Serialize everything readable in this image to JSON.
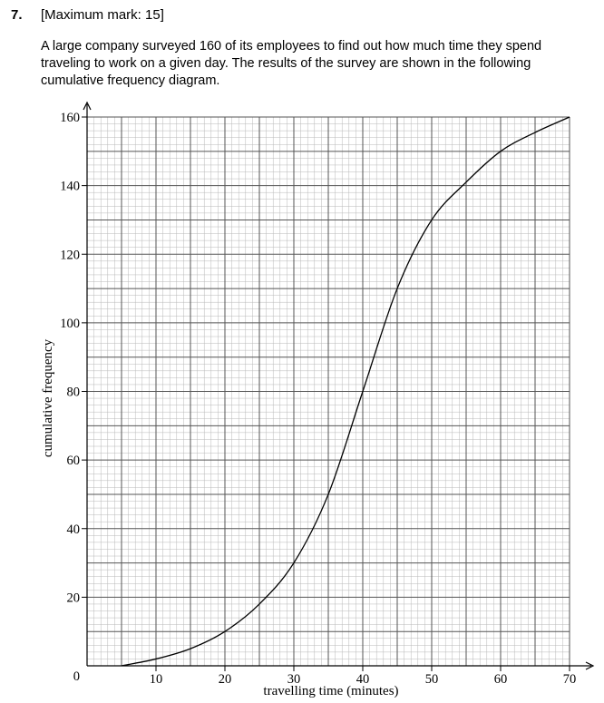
{
  "question": {
    "number": "7.",
    "marks": "[Maximum mark: 15]",
    "text": "A large company surveyed 160 of its employees to find out how much time they spend traveling to work on a given day. The results of the survey are shown in the following cumulative frequency diagram."
  },
  "chart_data": {
    "type": "line",
    "xlabel": "travelling time (minutes)",
    "ylabel": "cumulative frequency",
    "xlim": [
      0,
      70
    ],
    "ylim": [
      0,
      160
    ],
    "x_ticks": [
      10,
      20,
      30,
      40,
      50,
      60,
      70
    ],
    "y_ticks": [
      20,
      40,
      60,
      80,
      100,
      120,
      140,
      160
    ],
    "origin_label": "0",
    "grid": true,
    "legend": "none",
    "series": [
      {
        "x": [
          5,
          10,
          15,
          20,
          25,
          30,
          35,
          40,
          45,
          50,
          55,
          60,
          65,
          70
        ],
        "y": [
          0,
          2,
          5,
          10,
          18,
          30,
          50,
          80,
          110,
          130,
          141,
          150,
          155.5,
          160
        ]
      }
    ],
    "colors": {
      "major_grid": "#555555",
      "minor_grid": "#b8b8b8",
      "curve": "#000000",
      "axis": "#000000"
    }
  }
}
